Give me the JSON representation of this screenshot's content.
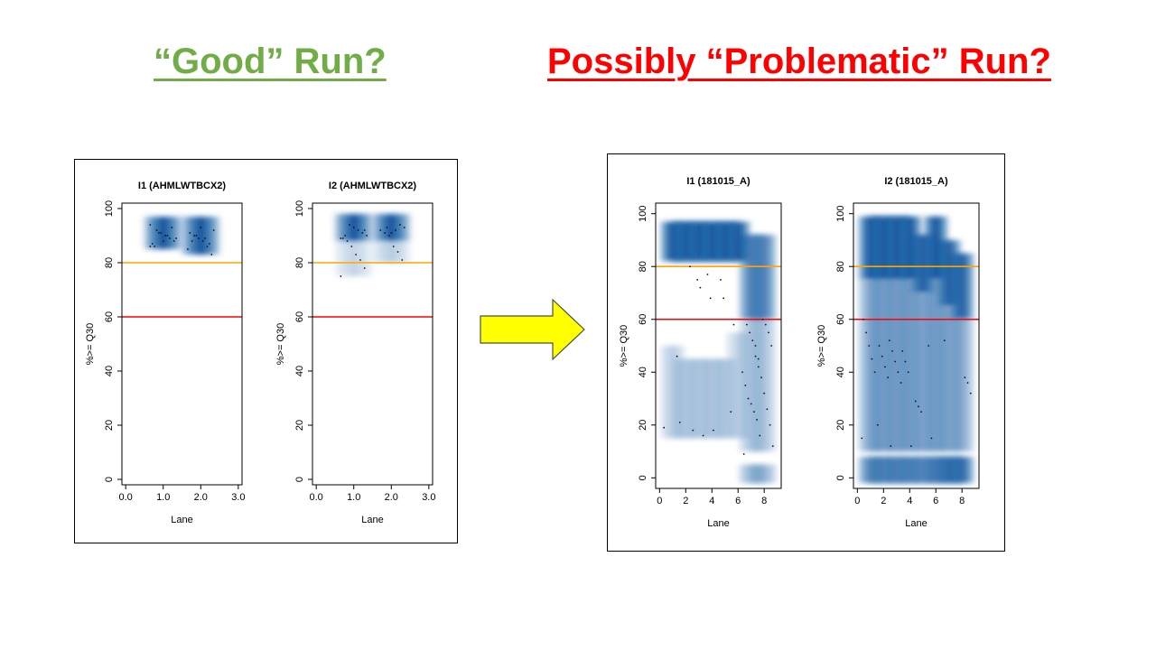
{
  "headings": {
    "good": "“Good” Run?",
    "bad": "Possibly “Problematic” Run?"
  },
  "colors": {
    "good_heading": "#70AD47",
    "bad_heading": "#FF0000",
    "arrow_fill": "#FFFF00",
    "threshold_80": "#FFA500",
    "threshold_60": "#FF0000",
    "density": "#08519C"
  },
  "chart_data": [
    {
      "type": "scatter",
      "title": "I1 (AHMLWTBCX2)",
      "xlabel": "Lane",
      "ylabel": "%>= Q30",
      "xlim": [
        -0.1,
        3.1
      ],
      "ylim": [
        -2,
        102
      ],
      "xticks": [
        "0.0",
        "1.0",
        "2.0",
        "3.0"
      ],
      "yticks": [
        "0",
        "20",
        "40",
        "60",
        "80",
        "100"
      ],
      "hlines": [
        {
          "y": 80,
          "color": "#FFA500"
        },
        {
          "y": 60,
          "color": "#FF0000"
        }
      ],
      "lanes": [
        {
          "x": 1,
          "bands": [
            {
              "lo": 85,
              "hi": 97,
              "w": 1.0
            }
          ],
          "points": [
            86,
            88,
            89,
            90,
            91,
            92,
            87,
            89,
            93,
            90,
            88,
            91,
            86,
            94
          ]
        },
        {
          "x": 2,
          "bands": [
            {
              "lo": 83,
              "hi": 97,
              "w": 1.0
            }
          ],
          "points": [
            83,
            86,
            88,
            89,
            90,
            91,
            92,
            87,
            89,
            93,
            90,
            88,
            85
          ]
        }
      ]
    },
    {
      "type": "scatter",
      "title": "I2 (AHMLWTBCX2)",
      "xlabel": "Lane",
      "ylabel": "%>= Q30",
      "xlim": [
        -0.1,
        3.1
      ],
      "ylim": [
        -2,
        102
      ],
      "xticks": [
        "0.0",
        "1.0",
        "2.0",
        "3.0"
      ],
      "yticks": [
        "0",
        "20",
        "40",
        "60",
        "80",
        "100"
      ],
      "hlines": [
        {
          "y": 80,
          "color": "#FFA500"
        },
        {
          "y": 60,
          "color": "#FF0000"
        }
      ],
      "lanes": [
        {
          "x": 1,
          "bands": [
            {
              "lo": 88,
              "hi": 98,
              "w": 1.0
            },
            {
              "lo": 75,
              "hi": 88,
              "w": 0.25
            }
          ],
          "points": [
            75,
            78,
            81,
            83,
            86,
            88,
            89,
            90,
            91,
            92,
            93,
            94,
            90,
            89,
            92
          ]
        },
        {
          "x": 2,
          "bands": [
            {
              "lo": 88,
              "hi": 98,
              "w": 1.0
            },
            {
              "lo": 80,
              "hi": 88,
              "w": 0.3
            }
          ],
          "points": [
            81,
            84,
            86,
            90,
            91,
            92,
            93,
            94,
            92,
            91,
            93
          ]
        }
      ]
    },
    {
      "type": "scatter",
      "title": "I1 (181015_A)",
      "xlabel": "Lane",
      "ylabel": "%>= Q30",
      "xlim": [
        -0.3,
        9.3
      ],
      "ylim": [
        -4,
        104
      ],
      "xticks": [
        "0",
        "2",
        "4",
        "6",
        "8"
      ],
      "yticks": [
        "0",
        "20",
        "40",
        "60",
        "80",
        "100"
      ],
      "hlines": [
        {
          "y": 80,
          "color": "#FFA500"
        },
        {
          "y": 60,
          "color": "#FF0000"
        }
      ],
      "lanes": [
        {
          "x": 1,
          "bands": [
            {
              "lo": 82,
              "hi": 97,
              "w": 1.0
            },
            {
              "lo": 15,
              "hi": 50,
              "w": 0.3
            }
          ],
          "points": [
            19,
            21,
            46
          ]
        },
        {
          "x": 2,
          "bands": [
            {
              "lo": 82,
              "hi": 97,
              "w": 1.0
            },
            {
              "lo": 15,
              "hi": 45,
              "w": 0.3
            }
          ],
          "points": [
            18,
            80
          ]
        },
        {
          "x": 3,
          "bands": [
            {
              "lo": 82,
              "hi": 97,
              "w": 1.0
            },
            {
              "lo": 15,
              "hi": 45,
              "w": 0.3
            }
          ],
          "points": [
            16,
            72,
            75
          ]
        },
        {
          "x": 4,
          "bands": [
            {
              "lo": 82,
              "hi": 97,
              "w": 1.0
            },
            {
              "lo": 15,
              "hi": 45,
              "w": 0.3
            }
          ],
          "points": [
            18,
            68,
            77
          ]
        },
        {
          "x": 5,
          "bands": [
            {
              "lo": 82,
              "hi": 97,
              "w": 1.0
            },
            {
              "lo": 15,
              "hi": 45,
              "w": 0.3
            }
          ],
          "points": [
            68,
            75
          ]
        },
        {
          "x": 6,
          "bands": [
            {
              "lo": 82,
              "hi": 97,
              "w": 1.0
            },
            {
              "lo": 15,
              "hi": 55,
              "w": 0.25
            }
          ],
          "points": [
            58,
            25
          ]
        },
        {
          "x": 7,
          "bands": [
            {
              "lo": 60,
              "hi": 92,
              "w": 0.75
            },
            {
              "lo": 10,
              "hi": 60,
              "w": 0.35
            },
            {
              "lo": -2,
              "hi": 5,
              "w": 0.45
            }
          ],
          "points": [
            9,
            16,
            22,
            25,
            28,
            30,
            35,
            40,
            45,
            50,
            52,
            55,
            58
          ]
        },
        {
          "x": 8,
          "bands": [
            {
              "lo": 60,
              "hi": 92,
              "w": 0.75
            },
            {
              "lo": 10,
              "hi": 60,
              "w": 0.35
            },
            {
              "lo": -2,
              "hi": 5,
              "w": 0.45
            }
          ],
          "points": [
            12,
            20,
            26,
            32,
            38,
            42,
            46,
            50,
            55,
            58,
            60
          ]
        }
      ]
    },
    {
      "type": "scatter",
      "title": "I2 (181015_A)",
      "xlabel": "Lane",
      "ylabel": "%>= Q30",
      "xlim": [
        -0.3,
        9.3
      ],
      "ylim": [
        -4,
        104
      ],
      "xticks": [
        "0",
        "2",
        "4",
        "6",
        "8"
      ],
      "yticks": [
        "0",
        "20",
        "40",
        "60",
        "80",
        "100"
      ],
      "hlines": [
        {
          "y": 80,
          "color": "#FFA500"
        },
        {
          "y": 60,
          "color": "#FF0000"
        }
      ],
      "lanes": [
        {
          "x": 1,
          "bands": [
            {
              "lo": 75,
              "hi": 99,
              "w": 1.0
            },
            {
              "lo": 10,
              "hi": 75,
              "w": 0.55
            },
            {
              "lo": -2,
              "hi": 8,
              "w": 0.75
            }
          ],
          "points": [
            15,
            20,
            40,
            45,
            50,
            55,
            60
          ]
        },
        {
          "x": 2,
          "bands": [
            {
              "lo": 75,
              "hi": 99,
              "w": 1.0
            },
            {
              "lo": 10,
              "hi": 75,
              "w": 0.55
            },
            {
              "lo": -2,
              "hi": 8,
              "w": 0.75
            }
          ],
          "points": [
            12,
            38,
            42,
            46,
            50
          ]
        },
        {
          "x": 3,
          "bands": [
            {
              "lo": 75,
              "hi": 99,
              "w": 1.0
            },
            {
              "lo": 10,
              "hi": 75,
              "w": 0.55
            },
            {
              "lo": -2,
              "hi": 8,
              "w": 0.75
            }
          ],
          "points": [
            36,
            40,
            44,
            48,
            52
          ]
        },
        {
          "x": 4,
          "bands": [
            {
              "lo": 75,
              "hi": 99,
              "w": 1.0
            },
            {
              "lo": 10,
              "hi": 75,
              "w": 0.55
            },
            {
              "lo": -2,
              "hi": 8,
              "w": 0.75
            }
          ],
          "points": [
            12,
            40,
            44,
            48
          ]
        },
        {
          "x": 5,
          "bands": [
            {
              "lo": 70,
              "hi": 92,
              "w": 0.95
            },
            {
              "lo": 10,
              "hi": 70,
              "w": 0.5
            },
            {
              "lo": -2,
              "hi": 8,
              "w": 0.7
            }
          ],
          "points": [
            25,
            27,
            29
          ]
        },
        {
          "x": 6,
          "bands": [
            {
              "lo": 75,
              "hi": 99,
              "w": 1.0
            },
            {
              "lo": 10,
              "hi": 75,
              "w": 0.55
            },
            {
              "lo": -2,
              "hi": 8,
              "w": 0.8
            }
          ],
          "points": [
            15,
            50,
            52
          ]
        },
        {
          "x": 7,
          "bands": [
            {
              "lo": 65,
              "hi": 90,
              "w": 0.95
            },
            {
              "lo": 10,
              "hi": 65,
              "w": 0.5
            },
            {
              "lo": -2,
              "hi": 8,
              "w": 0.9
            }
          ],
          "points": []
        },
        {
          "x": 8,
          "bands": [
            {
              "lo": 60,
              "hi": 85,
              "w": 0.95
            },
            {
              "lo": 10,
              "hi": 60,
              "w": 0.5
            },
            {
              "lo": -2,
              "hi": 8,
              "w": 0.9
            }
          ],
          "points": [
            32,
            36,
            38
          ]
        }
      ]
    }
  ]
}
